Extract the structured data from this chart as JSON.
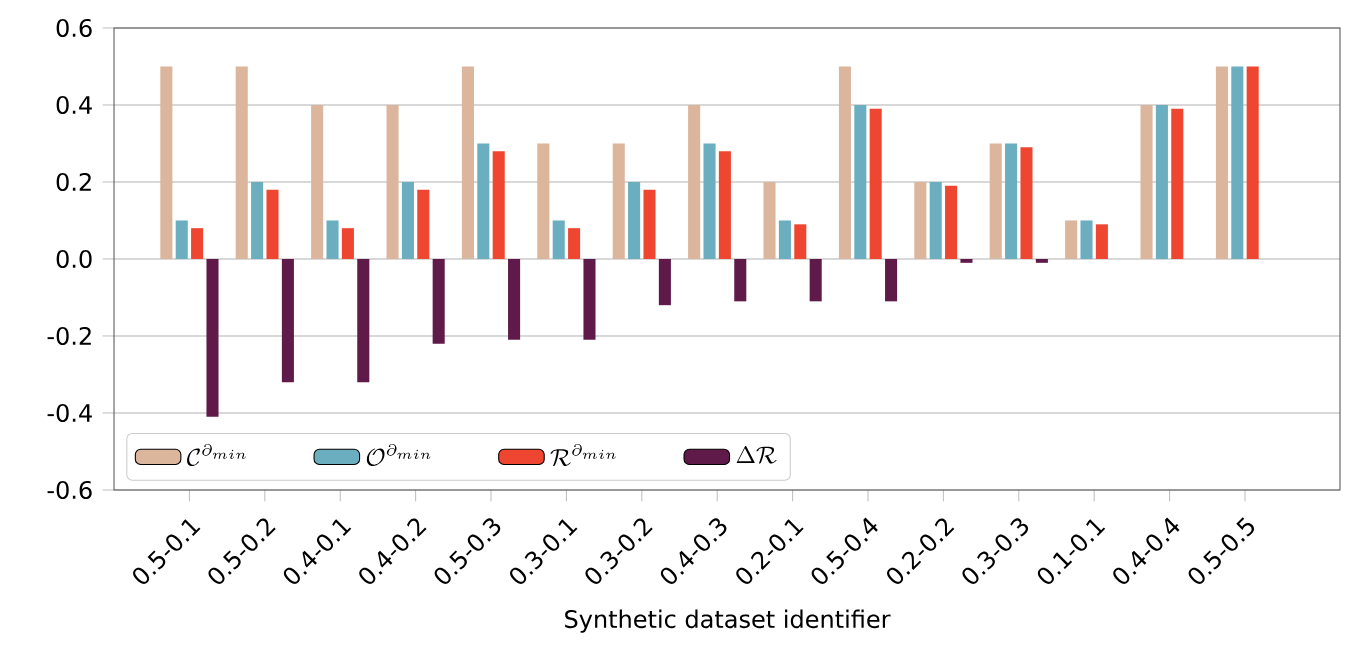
{
  "chart_data": {
    "type": "bar",
    "xlabel": "Synthetic dataset identifier",
    "categories": [
      "0.5-0.1",
      "0.5-0.2",
      "0.4-0.1",
      "0.4-0.2",
      "0.5-0.3",
      "0.3-0.1",
      "0.3-0.2",
      "0.4-0.3",
      "0.2-0.1",
      "0.5-0.4",
      "0.2-0.2",
      "0.3-0.3",
      "0.1-0.1",
      "0.4-0.4",
      "0.5-0.5"
    ],
    "series": [
      {
        "name": "\\mathcal{C}^{\\partial_{min}}",
        "color": "#dbb59c",
        "values": [
          0.5,
          0.5,
          0.4,
          0.4,
          0.5,
          0.3,
          0.3,
          0.4,
          0.2,
          0.5,
          0.2,
          0.3,
          0.1,
          0.4,
          0.5
        ]
      },
      {
        "name": "\\mathcal{O}^{\\partial_{min}}",
        "color": "#6aaec0",
        "values": [
          0.1,
          0.2,
          0.1,
          0.2,
          0.3,
          0.1,
          0.2,
          0.3,
          0.1,
          0.4,
          0.2,
          0.3,
          0.1,
          0.4,
          0.5
        ]
      },
      {
        "name": "\\mathcal{R}^{\\partial_{min}}",
        "color": "#ef4631",
        "values": [
          0.08,
          0.18,
          0.08,
          0.18,
          0.28,
          0.08,
          0.18,
          0.28,
          0.09,
          0.39,
          0.19,
          0.29,
          0.09,
          0.39,
          0.5
        ]
      },
      {
        "name": "\\Delta\\mathcal{R}",
        "color": "#5f1a4a",
        "values": [
          -0.41,
          -0.32,
          -0.32,
          -0.22,
          -0.21,
          -0.21,
          -0.12,
          -0.11,
          -0.11,
          -0.11,
          -0.01,
          -0.01,
          0,
          0,
          0
        ]
      }
    ],
    "ylim": [
      -0.6,
      0.6
    ],
    "yticks": [
      -0.6,
      -0.4,
      -0.2,
      {
        "value": 0,
        "label": "0.0"
      },
      0.2,
      0.4,
      0.6
    ],
    "grid": "y",
    "legend": "bottom left"
  }
}
